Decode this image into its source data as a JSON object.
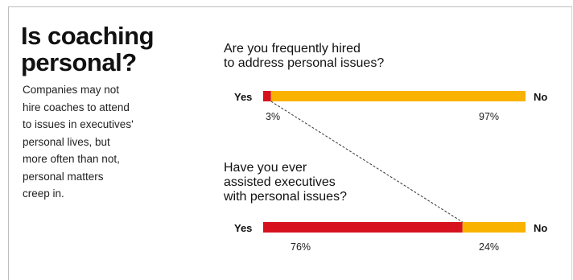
{
  "heading": {
    "title_line1": "Is coaching",
    "title_line2": "personal?",
    "description_lines": [
      "Companies may not",
      "hire coaches to attend",
      "to issues in executives'",
      "personal lives, but",
      "more often than not,",
      "personal matters",
      "creep in."
    ]
  },
  "colors": {
    "yes": "#d7121f",
    "no": "#f9b200",
    "connector": "#333333"
  },
  "chart_data": {
    "type": "bar",
    "orientation": "horizontal-stacked-100",
    "categories": [
      "Yes",
      "No"
    ],
    "bars": [
      {
        "question_lines": [
          "Are you frequently hired",
          "to address personal issues?"
        ],
        "yes_label": "Yes",
        "no_label": "No",
        "yes": 3,
        "no": 97,
        "yes_text": "3%",
        "no_text": "97%"
      },
      {
        "question_lines": [
          "Have you ever",
          "assisted executives",
          "with personal issues?"
        ],
        "yes_label": "Yes",
        "no_label": "No",
        "yes": 76,
        "no": 24,
        "yes_text": "76%",
        "no_text": "24%"
      }
    ]
  }
}
